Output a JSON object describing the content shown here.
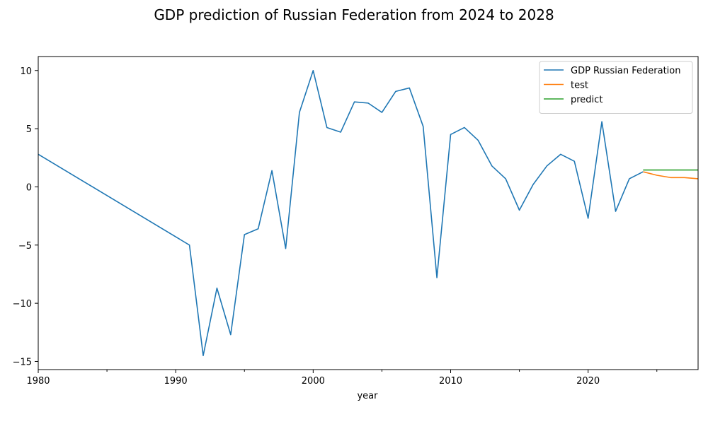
{
  "chart_data": {
    "type": "line",
    "title": "GDP prediction of Russian Federation from 2024 to 2028",
    "xlabel": "year",
    "ylabel": "",
    "xlim": [
      1980,
      2028
    ],
    "ylim": [
      -15.7,
      11.2
    ],
    "x_ticks": [
      1980,
      1990,
      2000,
      2010,
      2020
    ],
    "x_minor_ticks": [
      1985,
      1995,
      2005,
      2015,
      2025
    ],
    "y_ticks": [
      -15,
      -10,
      -5,
      0,
      5,
      10
    ],
    "grid": false,
    "legend_position": "top-right",
    "series": [
      {
        "name": "GDP Russian Federation",
        "color": "#1f77b4",
        "x": [
          1980,
          1991,
          1992,
          1993,
          1994,
          1995,
          1996,
          1997,
          1998,
          1999,
          2000,
          2001,
          2002,
          2003,
          2004,
          2005,
          2006,
          2007,
          2008,
          2009,
          2010,
          2011,
          2012,
          2013,
          2014,
          2015,
          2016,
          2017,
          2018,
          2019,
          2020,
          2021,
          2022,
          2023,
          2024
        ],
        "values": [
          2.8,
          -5.0,
          -14.5,
          -8.7,
          -12.7,
          -4.1,
          -3.6,
          1.4,
          -5.3,
          6.4,
          10.0,
          5.1,
          4.7,
          7.3,
          7.2,
          6.4,
          8.2,
          8.5,
          5.2,
          -7.8,
          4.5,
          5.1,
          4.0,
          1.8,
          0.7,
          -2.0,
          0.2,
          1.8,
          2.8,
          2.2,
          -2.7,
          5.6,
          -2.1,
          0.7,
          1.3
        ]
      },
      {
        "name": "test",
        "color": "#ff7f0e",
        "x": [
          2024,
          2025,
          2026,
          2027,
          2028
        ],
        "values": [
          1.3,
          1.0,
          0.8,
          0.8,
          0.7
        ]
      },
      {
        "name": "predict",
        "color": "#2ca02c",
        "x": [
          2024,
          2025,
          2026,
          2027,
          2028
        ],
        "values": [
          1.45,
          1.45,
          1.45,
          1.45,
          1.45
        ]
      }
    ]
  }
}
